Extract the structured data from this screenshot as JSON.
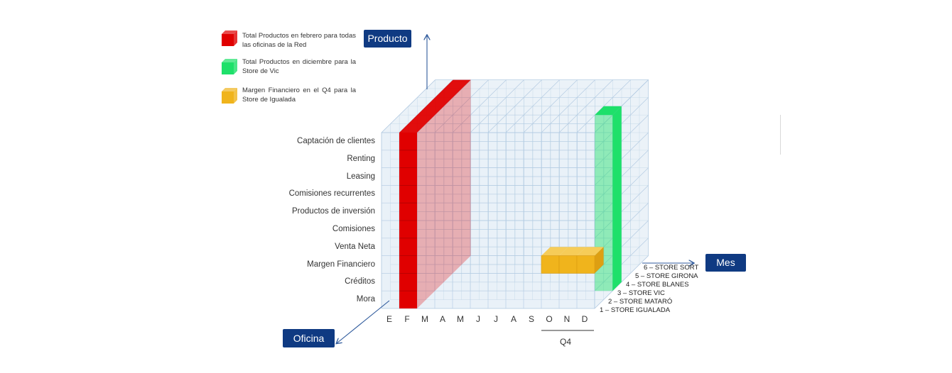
{
  "legend": [
    {
      "color": "#e00000",
      "text": "Total Productos en febrero para todas las oficinas de la Red"
    },
    {
      "color": "#1ee06a",
      "text": "Total Productos en diciembre para la Store de Vic"
    },
    {
      "color": "#f0b41c",
      "text": "Margen Financiero en el Q4 para la Store de Igualada"
    }
  ],
  "axes": {
    "producto": "Producto",
    "mes": "Mes",
    "oficina": "Oficina"
  },
  "products": [
    "Captación de clientes",
    "Renting",
    "Leasing",
    "Comisiones recurrentes",
    "Productos de inversión",
    "Comisiones",
    "Venta Neta",
    "Margen Financiero",
    "Créditos",
    "Mora"
  ],
  "months": [
    "E",
    "F",
    "M",
    "A",
    "M",
    "J",
    "J",
    "A",
    "S",
    "O",
    "N",
    "D"
  ],
  "quarter_label": "Q4",
  "stores": [
    "1 – STORE IGUALADA",
    "2 – STORE MATARÓ",
    "3 – STORE VIC",
    "4 – STORE BLANES",
    "5 – STORE GIRONA",
    "6 – STORE SORT"
  ],
  "colors": {
    "cube_fill": "#dbe7f3",
    "cube_edge": "#b4cbe2",
    "axis_box": "#0f3a82",
    "arrow": "#2f5a9c",
    "red": "#e00000",
    "green": "#1ee06a",
    "yellow": "#f0b41c"
  }
}
